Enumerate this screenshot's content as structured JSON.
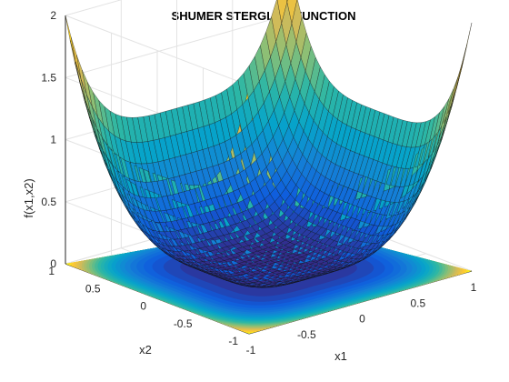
{
  "chart_data": {
    "type": "surface",
    "title": "SHUMER STERGLITZ FUNCTION",
    "xlabel": "x1",
    "ylabel": "x2",
    "zlabel": "f(x1,x2)",
    "function": "f(x1,x2) = x1^4 + x2^4",
    "xlim": [
      -1,
      1
    ],
    "ylim": [
      -1,
      1
    ],
    "zlim": [
      0,
      2
    ],
    "x_ticks": [
      "-1",
      "-0.5",
      "0",
      "0.5",
      "1"
    ],
    "y_ticks": [
      "-1",
      "-0.5",
      "0",
      "0.5",
      "1"
    ],
    "z_ticks": [
      "0",
      "0.5",
      "1",
      "1.5",
      "2"
    ],
    "corner_values": [
      {
        "x1": -1,
        "x2": -1,
        "f": 2
      },
      {
        "x1": -1,
        "x2": 1,
        "f": 2
      },
      {
        "x1": 1,
        "x2": -1,
        "f": 2
      },
      {
        "x1": 1,
        "x2": 1,
        "f": 2
      }
    ],
    "minimum": {
      "x1": 0,
      "x2": 0,
      "f": 0
    },
    "colormap": "parula",
    "colormap_stops": [
      "#352a87",
      "#0f5cdd",
      "#1481d6",
      "#06a4ca",
      "#2eb7a4",
      "#87bf77",
      "#d1bb59",
      "#fec832",
      "#f9fb0e"
    ],
    "grid": true,
    "contour_projection": true,
    "view": {
      "azimuth": -37.5,
      "elevation": 30
    }
  }
}
